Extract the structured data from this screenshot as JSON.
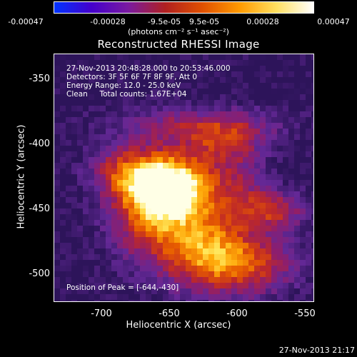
{
  "colorbar": {
    "ticks": [
      "-0.00047",
      "-0.00028",
      "-9.5e-05",
      "9.5e-05",
      "0.00028",
      "0.00047"
    ],
    "units": "(photons cm⁻² s⁻¹ asec⁻²)",
    "colors": [
      "#0033ff",
      "#4400cc",
      "#7a1aa0",
      "#b02020",
      "#e05000",
      "#ff9a00",
      "#ffe060",
      "#ffffff"
    ]
  },
  "title": "Reconstructed RHESSI Image",
  "info": {
    "time_range": "27-Nov-2013 20:48:28.000 to 20:53:46.000",
    "detectors": "Detectors: 3F 5F 6F 7F 8F 9F, Att 0",
    "energy": "Energy Range: 12.0 - 25.0 keV",
    "clean": "Clean     Total counts: 1.67E+04"
  },
  "peak_text": "Position of Peak = [-644,-430]",
  "axes": {
    "xlabel": "Heliocentric X (arcsec)",
    "ylabel": "Heliocentric Y (arcsec)",
    "xticks": [
      "-700",
      "-650",
      "-600",
      "-550"
    ],
    "yticks": [
      "-350",
      "-400",
      "-450",
      "-500"
    ]
  },
  "footer_date": "27-Nov-2013 21:17"
}
